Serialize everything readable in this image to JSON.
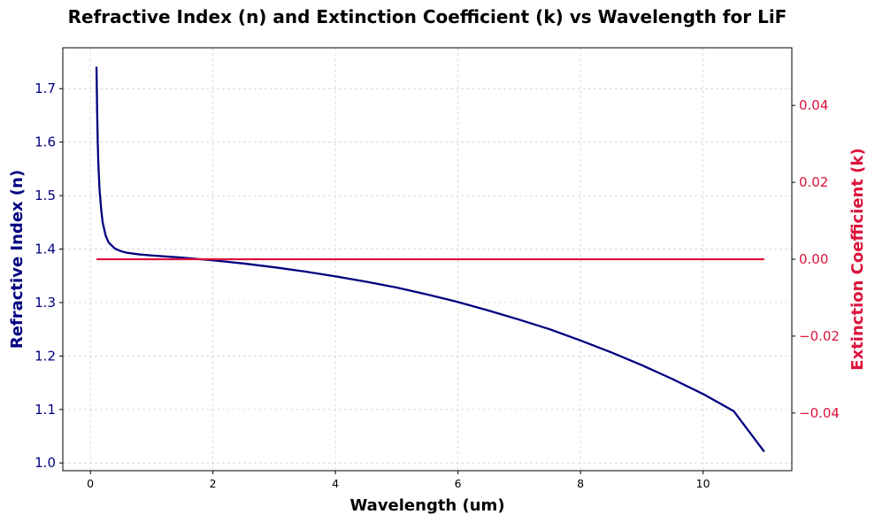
{
  "chart_data": {
    "type": "line",
    "title": "Refractive Index (n) and Extinction Coefficient (k) vs Wavelength for LiF",
    "xlabel": "Wavelength (um)",
    "ylabel_left": "Refractive Index (n)",
    "ylabel_right": "Extinction Coefficient (k)",
    "xlim": [
      -0.45,
      11.45
    ],
    "ylim_left": [
      0.9855,
      1.7765
    ],
    "ylim_right": [
      -0.055,
      0.055
    ],
    "x_ticks": [
      "0",
      "2",
      "4",
      "6",
      "8",
      "10"
    ],
    "y_left_ticks": [
      "1.0",
      "1.1",
      "1.2",
      "1.3",
      "1.4",
      "1.5",
      "1.6",
      "1.7"
    ],
    "y_right_ticks": [
      "−0.04",
      "−0.02",
      "0.00",
      "0.02",
      "0.04"
    ],
    "grid": true,
    "colors": {
      "n": "#000080",
      "k": "#dc143c",
      "grid": "#cccccc"
    },
    "series": [
      {
        "axis": "left",
        "x": [
          0.1,
          0.11,
          0.12,
          0.13,
          0.15,
          0.18,
          0.2,
          0.25,
          0.3,
          0.4,
          0.5,
          0.6,
          0.8,
          1.0,
          1.5,
          2.0,
          2.5,
          3.0,
          3.5,
          4.0,
          4.5,
          5.0,
          5.5,
          6.0,
          6.5,
          7.0,
          7.5,
          8.0,
          8.5,
          9.0,
          9.5,
          10.0,
          10.5,
          11.0
        ],
        "values": [
          1.741,
          1.66,
          1.6,
          1.56,
          1.51,
          1.47,
          1.45,
          1.425,
          1.412,
          1.401,
          1.396,
          1.393,
          1.39,
          1.388,
          1.384,
          1.379,
          1.373,
          1.366,
          1.358,
          1.349,
          1.339,
          1.328,
          1.315,
          1.301,
          1.285,
          1.268,
          1.25,
          1.229,
          1.207,
          1.183,
          1.157,
          1.129,
          1.097,
          1.021
        ]
      },
      {
        "axis": "right",
        "x": [
          0.1,
          11.0
        ],
        "values": [
          0.0,
          0.0
        ]
      }
    ]
  }
}
